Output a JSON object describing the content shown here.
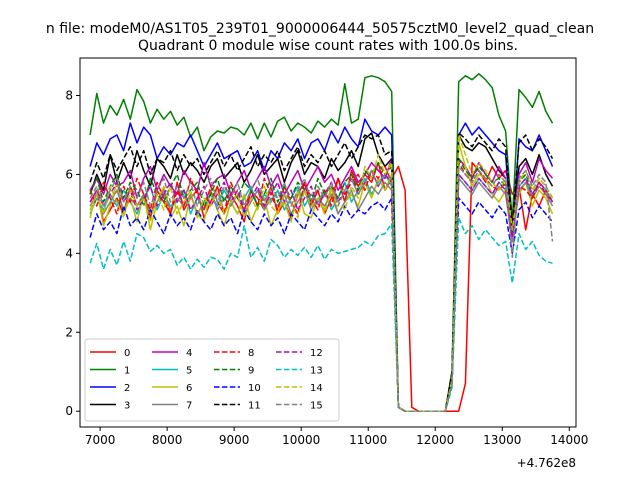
{
  "chart_data": {
    "type": "line",
    "suptitle": "n file: modeM0/AS1T05_239T01_9000006444_50575cztM0_level2_quad_clean",
    "title": "Quadrant 0 module wise count rates with 100.0s bins.",
    "xlabel": "",
    "ylabel": "",
    "x_offset_label": "+4.762e8",
    "xlim": [
      6700,
      14100
    ],
    "ylim": [
      -0.4,
      8.95
    ],
    "xticks": [
      7000,
      8000,
      9000,
      10000,
      11000,
      12000,
      13000,
      14000
    ],
    "yticks": [
      0,
      2,
      4,
      6,
      8
    ],
    "grid": false,
    "legend": {
      "placement": "lower-left",
      "columns": 4
    },
    "x_start": 6850,
    "x_step": 100,
    "x_count": 70,
    "series": [
      {
        "name": "0",
        "color": "#ff0000",
        "dash": "solid",
        "values": [
          5.3,
          5.6,
          4.8,
          5.1,
          5.4,
          5.0,
          5.7,
          5.2,
          5.5,
          4.9,
          5.6,
          5.3,
          5.0,
          5.8,
          5.1,
          5.4,
          5.6,
          4.9,
          5.3,
          5.7,
          5.0,
          5.5,
          5.2,
          4.8,
          5.6,
          5.4,
          5.1,
          5.7,
          5.0,
          5.3,
          4.9,
          5.5,
          5.8,
          5.2,
          5.6,
          5.0,
          5.4,
          5.9,
          5.3,
          6.1,
          5.7,
          6.0,
          5.8,
          6.3,
          5.6,
          5.9,
          6.2,
          5.6,
          0.1,
          0.0,
          0.0,
          0.0,
          0.0,
          0.0,
          0.0,
          0.0,
          0.7,
          6.3,
          6.1,
          5.8,
          6.2,
          5.9,
          6.1,
          5.5,
          5.7,
          4.6,
          5.5,
          5.2,
          5.6,
          5.3
        ]
      },
      {
        "name": "1",
        "color": "#008000",
        "dash": "solid",
        "values": [
          7.0,
          8.05,
          7.3,
          7.75,
          7.5,
          7.9,
          7.4,
          8.15,
          7.85,
          7.3,
          7.65,
          7.4,
          7.6,
          7.25,
          7.45,
          6.95,
          7.2,
          6.6,
          6.95,
          7.1,
          7.05,
          7.2,
          7.15,
          7.0,
          7.3,
          6.9,
          7.3,
          6.95,
          7.35,
          7.45,
          7.1,
          7.3,
          7.2,
          7.05,
          7.35,
          7.2,
          7.4,
          7.25,
          8.3,
          7.3,
          7.4,
          8.45,
          8.5,
          8.45,
          8.35,
          8.1,
          0.1,
          0.0,
          0.0,
          0.0,
          0.0,
          0.0,
          0.0,
          0.0,
          1.0,
          8.35,
          8.5,
          8.4,
          8.55,
          8.4,
          8.2,
          7.5,
          7.1,
          4.8,
          8.15,
          7.95,
          7.7,
          8.1,
          7.6,
          7.3
        ]
      },
      {
        "name": "2",
        "color": "#0000ff",
        "dash": "solid",
        "values": [
          6.2,
          6.8,
          6.5,
          6.9,
          7.0,
          6.6,
          7.3,
          6.8,
          7.2,
          7.0,
          6.4,
          6.7,
          6.5,
          6.8,
          6.7,
          7.0,
          6.6,
          6.2,
          6.5,
          6.8,
          6.4,
          6.5,
          6.6,
          6.2,
          6.3,
          6.6,
          6.1,
          6.6,
          6.4,
          6.8,
          6.6,
          6.9,
          6.4,
          6.8,
          6.9,
          6.6,
          7.1,
          6.8,
          7.2,
          6.9,
          6.7,
          7.4,
          7.1,
          7.0,
          7.2,
          7.0,
          0.1,
          0.0,
          0.0,
          0.0,
          0.0,
          0.0,
          0.0,
          0.0,
          0.9,
          7.0,
          7.3,
          7.0,
          7.2,
          7.0,
          6.8,
          6.6,
          6.5,
          4.3,
          6.9,
          6.7,
          6.6,
          7.0,
          6.6,
          6.2
        ]
      },
      {
        "name": "3",
        "color": "#000000",
        "dash": "solid",
        "values": [
          5.5,
          6.0,
          5.6,
          6.5,
          5.8,
          6.3,
          5.9,
          6.6,
          6.1,
          5.7,
          6.4,
          6.2,
          5.9,
          6.5,
          6.0,
          6.3,
          6.1,
          5.8,
          6.2,
          6.4,
          5.9,
          6.1,
          6.3,
          5.8,
          6.1,
          6.5,
          6.0,
          6.2,
          6.4,
          5.8,
          6.3,
          6.6,
          6.0,
          6.3,
          6.2,
          5.9,
          6.4,
          6.1,
          6.3,
          6.6,
          6.2,
          6.9,
          7.05,
          6.5,
          6.2,
          6.4,
          0.1,
          0.0,
          0.0,
          0.0,
          0.0,
          0.0,
          0.0,
          0.0,
          0.9,
          7.0,
          6.7,
          6.6,
          6.8,
          6.7,
          6.4,
          6.1,
          5.9,
          4.5,
          6.2,
          6.4,
          6.0,
          6.5,
          6.0,
          5.7
        ]
      },
      {
        "name": "4",
        "color": "#bf00bf",
        "dash": "solid",
        "values": [
          5.6,
          5.9,
          5.5,
          6.0,
          5.7,
          5.8,
          6.1,
          5.4,
          5.9,
          6.2,
          5.6,
          6.0,
          5.7,
          5.5,
          6.1,
          5.8,
          5.6,
          6.3,
          5.7,
          5.9,
          6.0,
          5.5,
          5.8,
          6.1,
          5.6,
          5.9,
          6.2,
          5.7,
          6.0,
          5.5,
          5.8,
          6.1,
          5.6,
          5.9,
          6.2,
          5.8,
          6.0,
          5.6,
          5.9,
          6.2,
          5.8,
          6.0,
          6.3,
          6.1,
          5.9,
          6.4,
          0.1,
          0.0,
          0.0,
          0.0,
          0.0,
          0.0,
          0.0,
          0.0,
          0.8,
          6.4,
          6.2,
          5.9,
          6.3,
          6.0,
          5.8,
          6.2,
          5.9,
          4.6,
          6.0,
          6.3,
          5.8,
          6.4,
          6.1,
          5.9
        ]
      },
      {
        "name": "5",
        "color": "#00bfbf",
        "dash": "solid",
        "values": [
          5.0,
          5.4,
          5.1,
          5.5,
          5.2,
          5.6,
          5.3,
          5.0,
          5.4,
          5.7,
          5.1,
          5.5,
          5.2,
          5.3,
          5.6,
          5.0,
          5.4,
          5.1,
          5.5,
          5.2,
          5.6,
          5.3,
          5.0,
          5.4,
          5.7,
          5.2,
          5.5,
          5.3,
          5.6,
          5.1,
          5.4,
          5.7,
          5.2,
          5.5,
          5.3,
          5.6,
          5.1,
          5.4,
          5.8,
          5.3,
          5.6,
          5.9,
          5.5,
          5.8,
          6.0,
          5.7,
          0.1,
          0.0,
          0.0,
          0.0,
          0.0,
          0.0,
          0.0,
          0.0,
          0.7,
          6.0,
          5.8,
          5.6,
          5.9,
          5.7,
          5.5,
          5.8,
          5.6,
          4.4,
          5.7,
          5.9,
          5.5,
          5.8,
          5.6,
          5.3
        ]
      },
      {
        "name": "6",
        "color": "#bfbf00",
        "dash": "solid",
        "values": [
          4.9,
          5.6,
          4.7,
          5.2,
          5.8,
          5.0,
          5.4,
          4.8,
          5.5,
          4.6,
          5.3,
          5.7,
          4.9,
          5.2,
          4.7,
          5.5,
          5.0,
          4.8,
          5.6,
          5.1,
          4.7,
          5.3,
          5.0,
          5.5,
          4.8,
          5.2,
          5.4,
          4.7,
          5.1,
          5.3,
          4.8,
          5.6,
          5.0,
          4.9,
          5.4,
          5.1,
          5.7,
          5.0,
          5.3,
          5.5,
          5.2,
          5.8,
          5.4,
          5.9,
          5.6,
          6.0,
          0.1,
          0.0,
          0.0,
          0.0,
          0.0,
          0.0,
          0.0,
          0.0,
          0.7,
          6.8,
          6.2,
          5.7,
          6.0,
          5.9,
          5.5,
          5.3,
          5.6,
          4.5,
          5.5,
          5.8,
          5.2,
          5.6,
          5.4,
          5.0
        ]
      },
      {
        "name": "7",
        "color": "#808080",
        "dash": "solid",
        "values": [
          5.2,
          5.5,
          5.0,
          5.3,
          5.6,
          5.1,
          5.4,
          5.2,
          5.5,
          5.0,
          5.3,
          5.6,
          5.1,
          5.4,
          5.2,
          5.5,
          5.0,
          5.3,
          5.6,
          5.1,
          5.4,
          5.2,
          5.5,
          5.0,
          5.3,
          5.6,
          5.1,
          5.4,
          5.2,
          5.5,
          5.0,
          5.3,
          5.6,
          5.1,
          5.4,
          5.2,
          5.5,
          5.0,
          5.3,
          5.6,
          5.1,
          5.4,
          5.7,
          5.5,
          5.8,
          5.6,
          0.1,
          0.0,
          0.0,
          0.0,
          0.0,
          0.0,
          0.0,
          0.0,
          0.7,
          5.9,
          5.7,
          5.5,
          5.8,
          5.6,
          5.4,
          5.7,
          5.5,
          4.3,
          5.6,
          5.8,
          5.4,
          5.7,
          5.5,
          5.2
        ]
      },
      {
        "name": "8",
        "color": "#ff0000",
        "dash": "dashed",
        "values": [
          5.6,
          5.2,
          5.8,
          5.4,
          5.0,
          5.7,
          5.3,
          5.9,
          5.5,
          5.1,
          5.8,
          5.4,
          5.0,
          5.6,
          5.2,
          5.9,
          5.5,
          5.1,
          5.7,
          5.3,
          5.0,
          5.8,
          5.4,
          5.1,
          5.6,
          5.2,
          5.9,
          5.5,
          5.1,
          5.7,
          5.3,
          5.0,
          5.8,
          5.4,
          5.1,
          5.6,
          5.2,
          5.9,
          5.5,
          5.8,
          6.0,
          5.6,
          6.1,
          5.9,
          6.2,
          5.8,
          0.1,
          0.0,
          0.0,
          0.0,
          0.0,
          0.0,
          0.0,
          0.0,
          0.8,
          6.3,
          6.0,
          5.8,
          6.1,
          5.9,
          5.7,
          5.6,
          5.8,
          4.6,
          5.7,
          5.6,
          5.4,
          5.8,
          5.5,
          5.3
        ]
      },
      {
        "name": "9",
        "color": "#008000",
        "dash": "dashed",
        "values": [
          5.5,
          5.9,
          5.3,
          5.7,
          6.0,
          5.4,
          5.8,
          5.6,
          5.2,
          5.9,
          5.5,
          5.3,
          5.7,
          6.0,
          5.4,
          5.6,
          5.8,
          5.2,
          5.5,
          5.9,
          5.3,
          5.7,
          5.4,
          5.8,
          5.6,
          5.2,
          5.5,
          5.9,
          5.3,
          5.7,
          5.4,
          5.8,
          5.6,
          5.3,
          5.9,
          5.5,
          5.7,
          5.4,
          5.8,
          6.0,
          5.6,
          6.1,
          5.9,
          6.3,
          6.0,
          6.2,
          0.1,
          0.0,
          0.0,
          0.0,
          0.0,
          0.0,
          0.0,
          0.0,
          0.8,
          6.4,
          6.1,
          5.9,
          6.2,
          6.0,
          5.8,
          5.9,
          5.7,
          4.5,
          5.8,
          6.0,
          5.6,
          5.9,
          5.7,
          5.4
        ]
      },
      {
        "name": "10",
        "color": "#0000ff",
        "dash": "dashed",
        "values": [
          4.4,
          5.0,
          4.6,
          4.8,
          4.5,
          5.2,
          4.7,
          4.9,
          4.6,
          5.1,
          4.8,
          4.5,
          5.0,
          4.7,
          4.9,
          4.6,
          5.1,
          4.8,
          4.6,
          5.0,
          4.7,
          4.9,
          4.5,
          5.1,
          4.8,
          4.6,
          5.0,
          4.7,
          4.9,
          4.5,
          5.0,
          4.8,
          4.6,
          5.1,
          4.9,
          4.7,
          5.0,
          4.8,
          5.2,
          4.9,
          5.1,
          5.0,
          5.2,
          5.3,
          5.1,
          5.4,
          0.1,
          0.0,
          0.0,
          0.0,
          0.0,
          0.0,
          0.0,
          0.0,
          0.7,
          5.4,
          5.2,
          5.0,
          5.3,
          5.1,
          4.9,
          5.2,
          5.0,
          4.0,
          5.1,
          5.3,
          4.9,
          5.2,
          5.0,
          4.8
        ]
      },
      {
        "name": "11",
        "color": "#000000",
        "dash": "dashed",
        "values": [
          5.8,
          6.3,
          5.9,
          6.5,
          6.1,
          6.4,
          6.7,
          6.2,
          6.6,
          6.0,
          6.4,
          6.3,
          6.6,
          6.1,
          6.5,
          6.2,
          6.4,
          6.0,
          6.3,
          6.6,
          6.2,
          6.5,
          6.1,
          6.4,
          6.7,
          6.2,
          6.5,
          6.3,
          6.6,
          6.1,
          6.4,
          6.7,
          6.2,
          6.5,
          6.3,
          6.6,
          6.2,
          6.5,
          6.8,
          6.4,
          6.7,
          7.0,
          6.9,
          7.0,
          6.5,
          6.6,
          0.1,
          0.0,
          0.0,
          0.0,
          0.0,
          0.0,
          0.0,
          0.0,
          1.0,
          7.05,
          6.9,
          6.7,
          7.0,
          6.8,
          6.6,
          6.9,
          6.7,
          4.7,
          6.8,
          7.0,
          6.6,
          6.9,
          6.7,
          6.4
        ]
      },
      {
        "name": "12",
        "color": "#bf00bf",
        "dash": "dashed",
        "values": [
          5.3,
          5.6,
          5.2,
          5.5,
          5.8,
          5.3,
          5.6,
          5.1,
          5.4,
          5.7,
          5.2,
          5.5,
          5.8,
          5.3,
          5.6,
          5.1,
          5.4,
          5.7,
          5.2,
          5.5,
          5.8,
          5.3,
          5.6,
          5.1,
          5.4,
          5.7,
          5.2,
          5.5,
          5.8,
          5.3,
          5.6,
          5.1,
          5.4,
          5.7,
          5.2,
          5.5,
          5.8,
          5.3,
          5.6,
          5.9,
          5.5,
          5.8,
          6.1,
          5.7,
          6.0,
          5.8,
          0.1,
          0.0,
          0.0,
          0.0,
          0.0,
          0.0,
          0.0,
          0.0,
          0.7,
          6.0,
          5.8,
          5.6,
          5.9,
          5.7,
          5.5,
          5.8,
          5.6,
          4.4,
          5.7,
          5.9,
          5.5,
          5.8,
          5.6,
          5.3
        ]
      },
      {
        "name": "13",
        "color": "#00bfbf",
        "dash": "dashed",
        "values": [
          3.75,
          4.25,
          3.6,
          4.1,
          3.7,
          4.3,
          3.8,
          4.5,
          4.4,
          4.05,
          4.2,
          4.0,
          4.1,
          3.7,
          3.9,
          3.6,
          3.85,
          3.65,
          3.9,
          3.85,
          3.6,
          4.0,
          3.9,
          4.7,
          3.9,
          4.15,
          3.8,
          4.35,
          4.2,
          3.9,
          4.1,
          3.95,
          4.15,
          3.9,
          4.2,
          3.85,
          4.1,
          4.0,
          4.05,
          4.1,
          4.15,
          4.3,
          4.2,
          4.45,
          4.5,
          4.75,
          0.1,
          0.0,
          0.0,
          0.0,
          0.0,
          0.0,
          0.0,
          0.0,
          0.6,
          4.9,
          4.5,
          4.7,
          4.35,
          4.6,
          4.4,
          4.2,
          4.3,
          3.25,
          4.5,
          4.1,
          4.3,
          3.95,
          3.8,
          3.75
        ]
      },
      {
        "name": "14",
        "color": "#bfbf00",
        "dash": "dashed",
        "values": [
          5.1,
          5.5,
          5.0,
          5.7,
          5.3,
          4.9,
          5.6,
          5.2,
          5.4,
          4.8,
          5.5,
          5.1,
          5.7,
          5.0,
          5.3,
          5.6,
          4.9,
          5.4,
          5.2,
          5.6,
          5.0,
          5.3,
          5.5,
          4.9,
          5.4,
          5.1,
          5.7,
          5.2,
          5.0,
          5.5,
          5.3,
          4.9,
          5.6,
          5.2,
          5.4,
          5.0,
          5.6,
          5.3,
          5.1,
          5.7,
          5.4,
          6.2,
          5.9,
          6.5,
          6.0,
          6.3,
          0.1,
          0.0,
          0.0,
          0.0,
          0.0,
          0.0,
          0.0,
          0.0,
          0.8,
          7.0,
          6.5,
          6.0,
          6.3,
          6.1,
          5.8,
          5.6,
          5.9,
          4.6,
          5.8,
          6.1,
          5.6,
          5.9,
          5.7,
          5.4
        ]
      },
      {
        "name": "15",
        "color": "#808080",
        "dash": "dashed",
        "values": [
          5.4,
          5.7,
          5.2,
          5.6,
          5.9,
          5.3,
          5.7,
          5.4,
          5.8,
          5.2,
          5.6,
          5.9,
          5.3,
          5.7,
          5.4,
          5.8,
          5.2,
          5.6,
          5.9,
          5.3,
          5.7,
          5.4,
          5.8,
          5.2,
          5.6,
          5.9,
          5.3,
          5.7,
          5.4,
          5.8,
          5.2,
          5.6,
          5.9,
          5.3,
          5.7,
          5.4,
          5.8,
          5.2,
          5.6,
          5.9,
          5.5,
          5.8,
          6.1,
          5.7,
          6.0,
          5.9,
          0.1,
          0.0,
          0.0,
          0.0,
          0.0,
          0.0,
          0.0,
          0.0,
          0.7,
          6.2,
          6.0,
          5.8,
          6.1,
          5.9,
          5.7,
          6.0,
          5.8,
          3.9,
          5.9,
          6.1,
          5.7,
          6.0,
          5.8,
          4.3
        ]
      }
    ]
  }
}
